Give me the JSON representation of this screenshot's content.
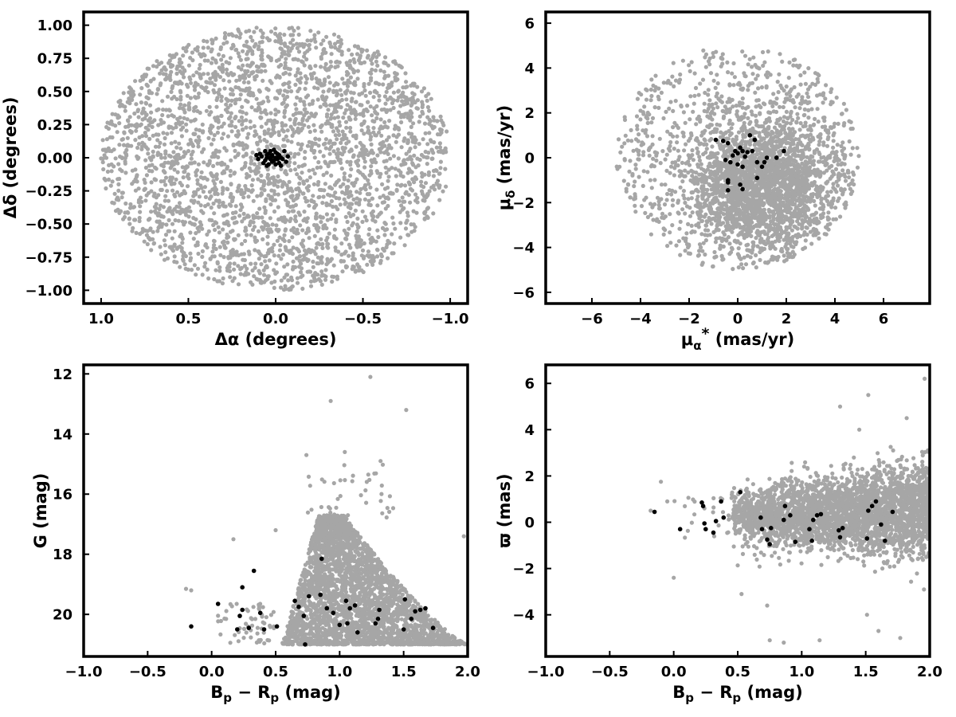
{
  "chart_data": [
    {
      "id": "position",
      "type": "scatter",
      "title": "",
      "xlabel": "Δα (degrees)",
      "ylabel": "Δδ (degrees)",
      "xlim": [
        1.1,
        -1.1
      ],
      "ylim": [
        -1.1,
        1.1
      ],
      "x_reversed": true,
      "xticks": [
        1.0,
        0.5,
        0.0,
        -0.5,
        -1.0
      ],
      "xtick_labels": [
        "1.0",
        "0.5",
        "0.0",
        "−0.5",
        "−1.0"
      ],
      "yticks": [
        1.0,
        0.75,
        0.5,
        0.25,
        0.0,
        -0.25,
        -0.5,
        -0.75,
        -1.0
      ],
      "ytick_labels": [
        "1.00",
        "0.75",
        "0.50",
        "0.25",
        "0.00",
        "−0.25",
        "−0.50",
        "−0.75",
        "−1.00"
      ],
      "grid": false,
      "field_distribution": {
        "shape": "disk",
        "center": [
          0,
          0
        ],
        "radius": 1.0,
        "approx_count": 3000
      },
      "series": [
        {
          "color": "#a6a6a6",
          "role": "field"
        },
        {
          "color": "#000000",
          "role": "members",
          "points": [
            [
              0.02,
              0.02
            ],
            [
              0.0,
              0.04
            ],
            [
              -0.02,
              0.02
            ],
            [
              0.03,
              -0.01
            ],
            [
              0.05,
              0.0
            ],
            [
              -0.03,
              0.0
            ],
            [
              0.01,
              -0.02
            ],
            [
              0.04,
              0.03
            ],
            [
              -0.01,
              -0.01
            ],
            [
              0.06,
              -0.02
            ],
            [
              0.02,
              -0.03
            ],
            [
              -0.04,
              -0.01
            ],
            [
              0.08,
              0.01
            ],
            [
              0.0,
              0.0
            ],
            [
              -0.05,
              0.05
            ],
            [
              0.03,
              0.05
            ],
            [
              0.07,
              -0.04
            ],
            [
              -0.02,
              -0.04
            ],
            [
              0.1,
              -0.01
            ],
            [
              0.05,
              0.02
            ],
            [
              -0.07,
              0.01
            ],
            [
              0.04,
              -0.05
            ],
            [
              0.01,
              0.06
            ],
            [
              0.09,
              0.03
            ],
            [
              -0.03,
              -0.06
            ],
            [
              0.0,
              -0.05
            ],
            [
              0.06,
              0.05
            ],
            [
              -0.06,
              -0.03
            ],
            [
              0.02,
              0.01
            ],
            [
              0.11,
              0.02
            ],
            [
              -0.01,
              0.03
            ],
            [
              0.05,
              -0.06
            ],
            [
              0.03,
              0.0
            ],
            [
              -0.02,
              0.01
            ]
          ]
        }
      ]
    },
    {
      "id": "proper-motion",
      "type": "scatter",
      "title": "",
      "xlabel": "μα* (mas/yr)",
      "ylabel": "μδ (mas/yr)",
      "xlim": [
        -7.9,
        7.9
      ],
      "ylim": [
        -6.5,
        6.5
      ],
      "xticks": [
        -6,
        -4,
        -2,
        0,
        2,
        4,
        6
      ],
      "xtick_labels": [
        "−6",
        "−4",
        "−2",
        "0",
        "2",
        "4",
        "6"
      ],
      "yticks": [
        -6,
        -4,
        -2,
        0,
        2,
        4,
        6
      ],
      "ytick_labels": [
        "−6",
        "−4",
        "−2",
        "0",
        "2",
        "4",
        "6"
      ],
      "grid": false,
      "field_distribution": {
        "shape": "disk",
        "center": [
          0,
          0
        ],
        "radius": 5.0,
        "core_center": [
          1.0,
          -1.2
        ],
        "core_spread": [
          1.5,
          1.6
        ],
        "approx_count": 3000
      },
      "series": [
        {
          "color": "#a6a6a6",
          "role": "field"
        },
        {
          "color": "#000000",
          "role": "members",
          "points": [
            [
              -0.9,
              0.8
            ],
            [
              -0.6,
              0.75
            ],
            [
              -0.4,
              0.65
            ],
            [
              0.1,
              0.45
            ],
            [
              0.0,
              0.2
            ],
            [
              0.2,
              0.3
            ],
            [
              0.4,
              0.25
            ],
            [
              0.6,
              0.3
            ],
            [
              0.5,
              1.0
            ],
            [
              0.7,
              0.8
            ],
            [
              1.2,
              0.0
            ],
            [
              1.6,
              0.0
            ],
            [
              1.9,
              0.3
            ],
            [
              -0.2,
              0.1
            ],
            [
              -0.3,
              -0.2
            ],
            [
              -0.5,
              -0.1
            ],
            [
              0.0,
              -0.3
            ],
            [
              0.2,
              -0.4
            ],
            [
              0.8,
              -0.2
            ],
            [
              1.0,
              -0.4
            ],
            [
              1.1,
              -0.2
            ],
            [
              0.8,
              -0.9
            ],
            [
              -0.4,
              -1.0
            ],
            [
              -0.4,
              -1.1
            ],
            [
              0.1,
              -1.2
            ],
            [
              -0.4,
              -1.45
            ],
            [
              0.2,
              -1.4
            ],
            [
              0.3,
              0.05
            ],
            [
              -0.1,
              0.3
            ]
          ]
        }
      ]
    },
    {
      "id": "cmd",
      "type": "scatter",
      "title": "",
      "xlabel": "Bp − Rp (mag)",
      "ylabel": "G (mag)",
      "xlim": [
        -1.0,
        2.0
      ],
      "ylim": [
        21.4,
        11.7
      ],
      "y_reversed": true,
      "xticks": [
        -1.0,
        -0.5,
        0.0,
        0.5,
        1.0,
        1.5,
        2.0
      ],
      "xtick_labels": [
        "−1.0",
        "−0.5",
        "0.0",
        "0.5",
        "1.0",
        "1.5",
        "2.0"
      ],
      "yticks": [
        20,
        18,
        16,
        14,
        12
      ],
      "ytick_labels": [
        "20",
        "18",
        "16",
        "14",
        "12"
      ],
      "grid": false,
      "field_distribution": {
        "shape": "cmd-wedge",
        "approx_count": 3000,
        "faint_limit": 21.0,
        "blue_edge_color": 0.55,
        "tip_color": 0.85,
        "tip_mag": 16.8
      },
      "series": [
        {
          "color": "#a6a6a6",
          "role": "field",
          "extra_points": [
            [
              0.93,
              12.9
            ],
            [
              1.24,
              12.1
            ],
            [
              1.52,
              13.2
            ],
            [
              0.74,
              14.7
            ],
            [
              1.04,
              14.6
            ],
            [
              1.32,
              14.9
            ],
            [
              -0.16,
              19.2
            ],
            [
              -0.2,
              19.15
            ],
            [
              0.17,
              17.5
            ],
            [
              0.5,
              17.2
            ],
            [
              1.97,
              17.4
            ]
          ]
        },
        {
          "color": "#000000",
          "role": "members",
          "points": [
            [
              -0.16,
              20.4
            ],
            [
              0.05,
              19.65
            ],
            [
              0.2,
              20.5
            ],
            [
              0.22,
              20.05
            ],
            [
              0.24,
              19.85
            ],
            [
              0.24,
              19.1
            ],
            [
              0.29,
              20.45
            ],
            [
              0.33,
              18.55
            ],
            [
              0.38,
              19.95
            ],
            [
              0.41,
              20.5
            ],
            [
              0.51,
              20.4
            ],
            [
              0.65,
              19.55
            ],
            [
              0.68,
              19.75
            ],
            [
              0.72,
              20.05
            ],
            [
              0.73,
              21.0
            ],
            [
              0.76,
              19.4
            ],
            [
              0.85,
              19.35
            ],
            [
              0.86,
              18.15
            ],
            [
              0.9,
              19.8
            ],
            [
              0.95,
              19.95
            ],
            [
              1.0,
              20.35
            ],
            [
              1.05,
              19.55
            ],
            [
              1.06,
              20.3
            ],
            [
              1.08,
              19.8
            ],
            [
              1.12,
              19.7
            ],
            [
              1.14,
              20.6
            ],
            [
              1.28,
              20.3
            ],
            [
              1.3,
              20.15
            ],
            [
              1.31,
              19.85
            ],
            [
              1.5,
              20.5
            ],
            [
              1.51,
              19.5
            ],
            [
              1.56,
              20.15
            ],
            [
              1.59,
              19.9
            ],
            [
              1.63,
              19.85
            ],
            [
              1.67,
              19.8
            ],
            [
              1.73,
              20.45
            ]
          ]
        }
      ]
    },
    {
      "id": "parallax",
      "type": "scatter",
      "title": "",
      "xlabel": "Bp − Rp (mag)",
      "ylabel": "ϖ (mas)",
      "xlim": [
        -1.0,
        2.0
      ],
      "ylim": [
        -5.8,
        6.8
      ],
      "xticks": [
        -1.0,
        -0.5,
        0.0,
        0.5,
        1.0,
        1.5,
        2.0
      ],
      "xtick_labels": [
        "−1.0",
        "−0.5",
        "0.0",
        "0.5",
        "1.0",
        "1.5",
        "2.0"
      ],
      "yticks": [
        -4,
        -2,
        0,
        2,
        4,
        6
      ],
      "ytick_labels": [
        "−4",
        "−2",
        "0",
        "2",
        "4",
        "6"
      ],
      "grid": false,
      "field_distribution": {
        "shape": "band",
        "approx_count": 3000,
        "color_range": [
          0.5,
          2.0
        ],
        "center_mag": 0.3
      },
      "series": [
        {
          "color": "#a6a6a6",
          "role": "field",
          "extra_points": [
            [
              1.96,
              6.2
            ],
            [
              1.52,
              5.5
            ],
            [
              1.3,
              5.0
            ],
            [
              1.82,
              4.5
            ],
            [
              -0.1,
              1.75
            ],
            [
              -0.05,
              0.9
            ],
            [
              -0.18,
              0.5
            ],
            [
              0.0,
              -2.4
            ],
            [
              0.53,
              -3.1
            ],
            [
              0.73,
              -3.6
            ],
            [
              0.75,
              -5.1
            ],
            [
              0.86,
              -5.2
            ],
            [
              1.14,
              -5.1
            ],
            [
              1.51,
              -4.0
            ],
            [
              1.6,
              -4.7
            ],
            [
              1.77,
              -5.0
            ],
            [
              1.45,
              4.0
            ]
          ]
        },
        {
          "color": "#000000",
          "role": "members",
          "points": [
            [
              -0.15,
              0.45
            ],
            [
              0.05,
              -0.3
            ],
            [
              0.22,
              0.85
            ],
            [
              0.23,
              0.7
            ],
            [
              0.24,
              -0.05
            ],
            [
              0.25,
              -0.3
            ],
            [
              0.31,
              -0.45
            ],
            [
              0.33,
              0.05
            ],
            [
              0.37,
              0.9
            ],
            [
              0.39,
              0.2
            ],
            [
              0.52,
              1.3
            ],
            [
              0.68,
              0.2
            ],
            [
              0.69,
              -0.3
            ],
            [
              0.73,
              -0.75
            ],
            [
              0.75,
              -0.95
            ],
            [
              0.76,
              -0.25
            ],
            [
              0.86,
              0.1
            ],
            [
              0.87,
              0.7
            ],
            [
              0.91,
              0.3
            ],
            [
              0.95,
              -0.85
            ],
            [
              1.06,
              -0.3
            ],
            [
              1.08,
              -0.8
            ],
            [
              1.09,
              0.1
            ],
            [
              1.12,
              0.3
            ],
            [
              1.15,
              0.35
            ],
            [
              1.29,
              -0.35
            ],
            [
              1.3,
              -0.65
            ],
            [
              1.32,
              -0.25
            ],
            [
              1.51,
              -0.7
            ],
            [
              1.52,
              0.5
            ],
            [
              1.55,
              0.7
            ],
            [
              1.58,
              0.9
            ],
            [
              1.62,
              -0.1
            ],
            [
              1.65,
              -0.8
            ],
            [
              1.71,
              0.45
            ]
          ]
        }
      ]
    }
  ]
}
